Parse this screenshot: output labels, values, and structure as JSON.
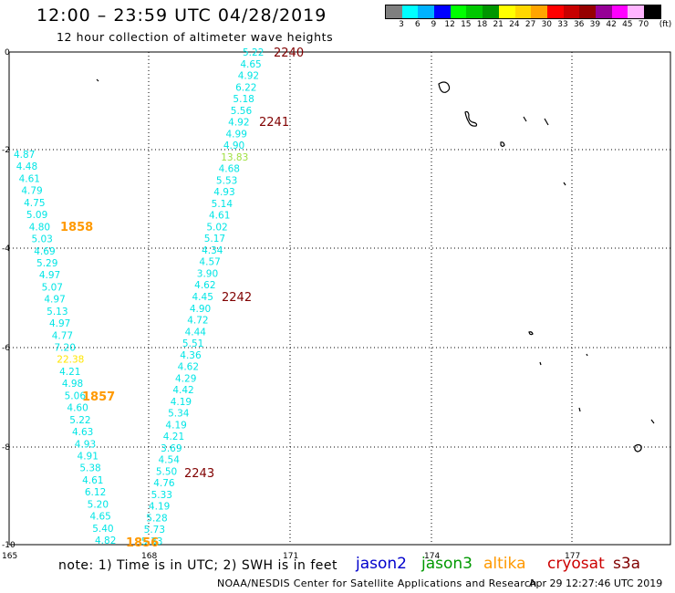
{
  "header": {
    "title": "12:00 – 23:59 UTC 04/28/2019",
    "subtitle": "12 hour collection of altimeter wave heights"
  },
  "colorbar": {
    "colors": [
      "#7f7f7f",
      "#00ffff",
      "#00b2ff",
      "#0000ff",
      "#00ff00",
      "#00c800",
      "#009600",
      "#ffff00",
      "#ffd700",
      "#ffa500",
      "#ff0000",
      "#c80000",
      "#960000",
      "#960096",
      "#ff00ff",
      "#ffb4ff",
      "#000000"
    ],
    "labels": [
      "3",
      "6",
      "9",
      "12",
      "15",
      "18",
      "21",
      "24",
      "27",
      "30",
      "33",
      "36",
      "39",
      "42",
      "45",
      "70",
      "(ft)"
    ]
  },
  "axes": {
    "x_ticks": [
      "165",
      "168",
      "171",
      "174",
      "177"
    ],
    "y_ticks": [
      "0",
      "-2",
      "-4",
      "-6",
      "-8",
      "-10"
    ]
  },
  "track_left": {
    "color": "#00e5e5",
    "values": [
      "4.87",
      "4.48",
      "4.61",
      "4.79",
      "4.75",
      "5.09",
      "4.80",
      "5.03",
      "4.69",
      "5.29",
      "4.97",
      "5.07",
      "4.97",
      "5.13",
      "4.97",
      "4.77",
      "7.20",
      "22.38",
      "4.21",
      "4.98",
      "5.06",
      "4.60",
      "5.22",
      "4.63",
      "4.93",
      "4.91",
      "5.38",
      "4.61",
      "6.12",
      "5.20",
      "4.65",
      "5.40",
      "4.82"
    ],
    "highlight_index": 17,
    "highlight_color": "#ffe600",
    "times": [
      {
        "label": "1858",
        "color": "#ff9900"
      },
      {
        "label": "1857",
        "color": "#ff9900"
      },
      {
        "label": "1856",
        "color": "#ff9900"
      }
    ]
  },
  "track_right": {
    "color": "#00e5e5",
    "values": [
      "5.22",
      "4.65",
      "4.92",
      "6.22",
      "5.18",
      "5.56",
      "4.92",
      "4.99",
      "4.90",
      "13.83",
      "4.68",
      "5.53",
      "4.93",
      "5.14",
      "4.61",
      "5.02",
      "5.17",
      "4.34",
      "4.57",
      "3.90",
      "4.62",
      "4.45",
      "4.90",
      "4.72",
      "4.44",
      "5.51",
      "4.36",
      "4.62",
      "4.29",
      "4.42",
      "4.19",
      "5.34",
      "4.19",
      "4.21",
      "3.69",
      "4.54",
      "5.50",
      "4.76",
      "5.33",
      "4.19",
      "5.28",
      "5.73",
      "5.33"
    ],
    "highlight_index": 9,
    "highlight_color": "#a0e040",
    "times": [
      {
        "label": "2240",
        "color": "#800000"
      },
      {
        "label": "2241",
        "color": "#800000"
      },
      {
        "label": "2242",
        "color": "#800000"
      },
      {
        "label": "2243",
        "color": "#800000"
      }
    ]
  },
  "note": "note:  1) Time is in UTC; 2) SWH is in feet",
  "satellites": [
    {
      "name": "jason2",
      "color": "#0000cc"
    },
    {
      "name": "jason3",
      "color": "#009900"
    },
    {
      "name": "altika",
      "color": "#ff9900"
    },
    {
      "name": "cryosat",
      "color": "#cc0000"
    },
    {
      "name": "s3a",
      "color": "#800000"
    }
  ],
  "footer": "NOAA/NESDIS Center for Satellite Applications and Research",
  "timestamp": "Apr 29 12:27:46 UTC 2019"
}
